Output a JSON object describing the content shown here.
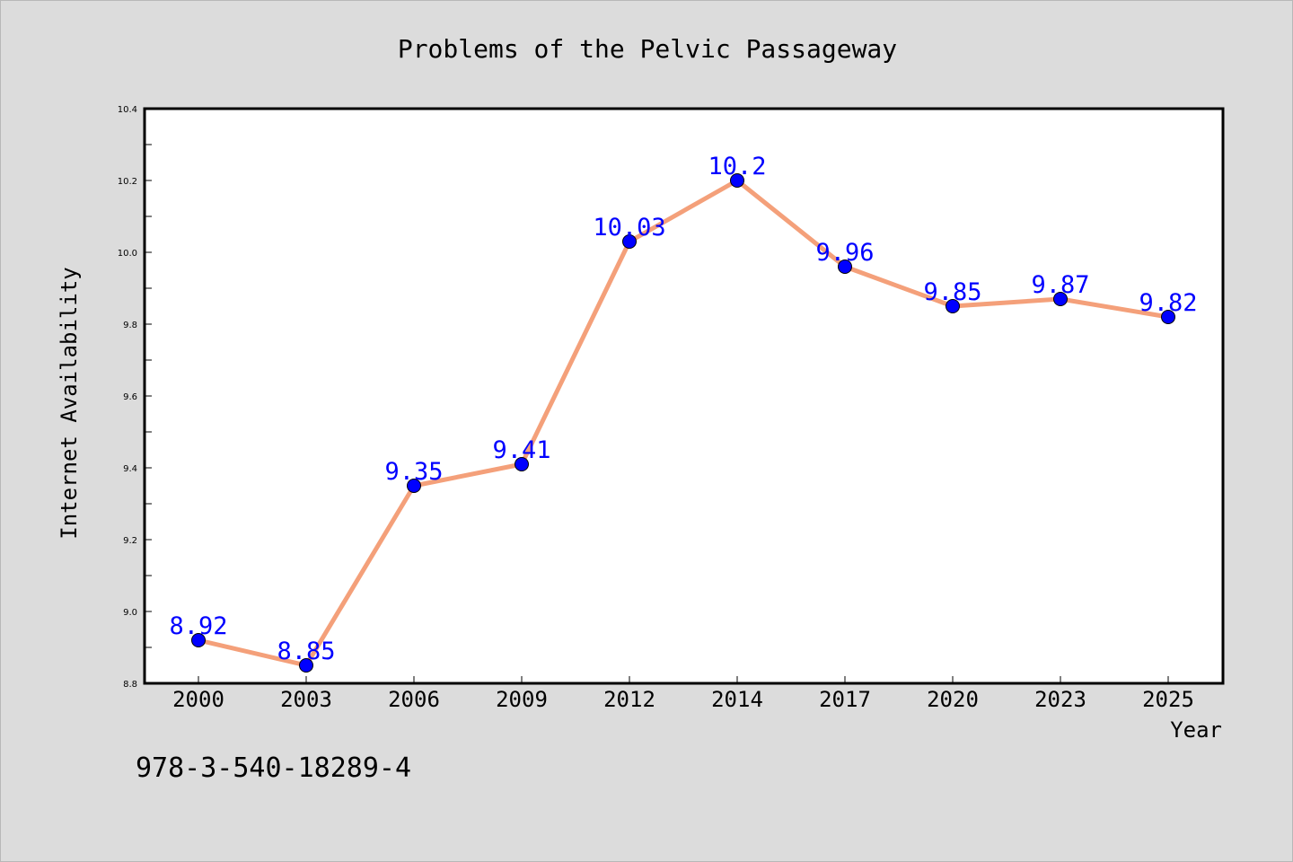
{
  "chart_data": {
    "type": "line",
    "title": "Problems of the Pelvic Passageway",
    "xlabel": "Year",
    "ylabel": "Internet Availability",
    "categories": [
      "2000",
      "2003",
      "2006",
      "2009",
      "2012",
      "2014",
      "2017",
      "2020",
      "2023",
      "2025"
    ],
    "series": [
      {
        "values": [
          8.92,
          8.85,
          9.35,
          9.41,
          10.03,
          10.2,
          9.96,
          9.85,
          9.87,
          9.82
        ],
        "data_labels": [
          "8.92",
          "8.85",
          "9.35",
          "9.41",
          "10.03",
          "10.2",
          "9.96",
          "9.85",
          "9.87",
          "9.82"
        ],
        "line_color": "#f4a07a",
        "marker_color": "#0000ff"
      }
    ],
    "ylim": [
      8.8,
      10.4
    ],
    "yticks": [
      "8.8",
      "9.0",
      "9.2",
      "9.4",
      "9.6",
      "9.8",
      "10.0",
      "10.2",
      "10.4"
    ],
    "grid": false,
    "legend": "none"
  },
  "footer": {
    "isbn": "978-3-540-18289-4"
  },
  "colors": {
    "background": "#dcdcdc",
    "plot_background": "#ffffff",
    "line": "#f4a07a",
    "markers": "#0000ff",
    "data_labels": "#0000ff"
  }
}
